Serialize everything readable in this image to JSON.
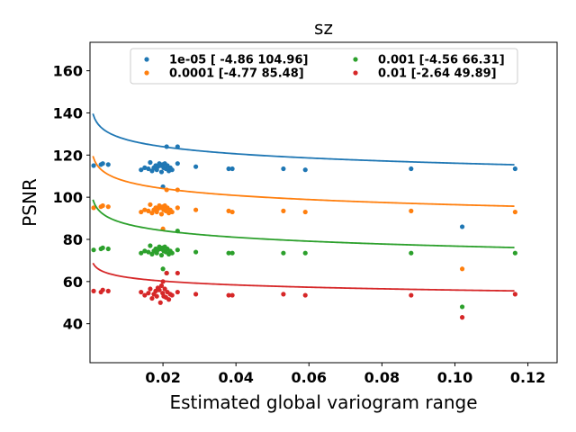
{
  "chart_data": {
    "type": "scatter",
    "title": "sz",
    "xlabel": "Estimated global variogram range",
    "ylabel": "PSNR",
    "xlim": [
      0.0,
      0.128
    ],
    "ylim": [
      21.5,
      173.5
    ],
    "xticks": [
      0.02,
      0.04,
      0.06,
      0.08,
      0.1,
      0.12
    ],
    "xtick_labels": [
      "0.02",
      "0.04",
      "0.06",
      "0.08",
      "0.10",
      "0.12"
    ],
    "yticks": [
      40,
      60,
      80,
      100,
      120,
      140,
      160
    ],
    "ytick_labels": [
      "40",
      "60",
      "80",
      "100",
      "120",
      "140",
      "160"
    ],
    "legend_position": "upper-center, two columns",
    "series": [
      {
        "name": "1e-05 [ -4.86 104.96]",
        "color": "#1f77b4",
        "fit": {
          "a": -4.86,
          "b": 104.96
        },
        "points": [
          [
            0.001,
            115
          ],
          [
            0.003,
            115.5
          ],
          [
            0.0035,
            116
          ],
          [
            0.005,
            115.5
          ],
          [
            0.014,
            113
          ],
          [
            0.015,
            114
          ],
          [
            0.016,
            113.5
          ],
          [
            0.0165,
            116.5
          ],
          [
            0.017,
            112.5
          ],
          [
            0.0175,
            114
          ],
          [
            0.018,
            115
          ],
          [
            0.0183,
            113
          ],
          [
            0.0186,
            114.5
          ],
          [
            0.019,
            116
          ],
          [
            0.0193,
            115
          ],
          [
            0.0196,
            112
          ],
          [
            0.0199,
            115.5
          ],
          [
            0.0202,
            114
          ],
          [
            0.0205,
            116
          ],
          [
            0.0208,
            113.5
          ],
          [
            0.0212,
            115
          ],
          [
            0.0216,
            112.5
          ],
          [
            0.022,
            114
          ],
          [
            0.0225,
            113
          ],
          [
            0.02,
            105
          ],
          [
            0.021,
            124
          ],
          [
            0.024,
            124
          ],
          [
            0.024,
            116
          ],
          [
            0.029,
            114.5
          ],
          [
            0.038,
            113.5
          ],
          [
            0.039,
            113.5
          ],
          [
            0.053,
            113.5
          ],
          [
            0.059,
            113
          ],
          [
            0.088,
            113.5
          ],
          [
            0.102,
            86
          ],
          [
            0.1165,
            113.5
          ]
        ]
      },
      {
        "name": "0.0001 [-4.77 85.48]",
        "color": "#ff7f0e",
        "fit": {
          "a": -4.77,
          "b": 85.48
        },
        "points": [
          [
            0.001,
            95
          ],
          [
            0.003,
            95.5
          ],
          [
            0.0035,
            96
          ],
          [
            0.005,
            95.5
          ],
          [
            0.014,
            93
          ],
          [
            0.015,
            94
          ],
          [
            0.016,
            93.5
          ],
          [
            0.0165,
            96.5
          ],
          [
            0.017,
            92.5
          ],
          [
            0.0175,
            94
          ],
          [
            0.018,
            95
          ],
          [
            0.0183,
            93
          ],
          [
            0.0186,
            94.5
          ],
          [
            0.019,
            96
          ],
          [
            0.0193,
            95
          ],
          [
            0.0196,
            92
          ],
          [
            0.0199,
            95.5
          ],
          [
            0.0202,
            94
          ],
          [
            0.0205,
            96
          ],
          [
            0.0208,
            93.5
          ],
          [
            0.0212,
            95
          ],
          [
            0.0216,
            92.5
          ],
          [
            0.022,
            94
          ],
          [
            0.0225,
            93
          ],
          [
            0.02,
            85
          ],
          [
            0.021,
            103.5
          ],
          [
            0.024,
            103.5
          ],
          [
            0.024,
            95
          ],
          [
            0.029,
            94
          ],
          [
            0.038,
            93.5
          ],
          [
            0.039,
            93
          ],
          [
            0.053,
            93.5
          ],
          [
            0.059,
            93
          ],
          [
            0.088,
            93.5
          ],
          [
            0.102,
            66
          ],
          [
            0.1165,
            93
          ]
        ]
      },
      {
        "name": "0.001 [-4.56 66.31]",
        "color": "#2ca02c",
        "fit": {
          "a": -4.56,
          "b": 66.31
        },
        "points": [
          [
            0.001,
            75
          ],
          [
            0.003,
            75.5
          ],
          [
            0.0035,
            76
          ],
          [
            0.005,
            75.5
          ],
          [
            0.014,
            73.5
          ],
          [
            0.015,
            74.5
          ],
          [
            0.016,
            74
          ],
          [
            0.0165,
            77
          ],
          [
            0.017,
            73
          ],
          [
            0.0175,
            74.5
          ],
          [
            0.018,
            75.5
          ],
          [
            0.0183,
            73.5
          ],
          [
            0.0186,
            75
          ],
          [
            0.019,
            76.5
          ],
          [
            0.0193,
            75.5
          ],
          [
            0.0196,
            72.5
          ],
          [
            0.0199,
            76
          ],
          [
            0.0202,
            74.5
          ],
          [
            0.0205,
            76.5
          ],
          [
            0.0208,
            74
          ],
          [
            0.0212,
            75.5
          ],
          [
            0.0216,
            73
          ],
          [
            0.022,
            74.5
          ],
          [
            0.0225,
            73.5
          ],
          [
            0.02,
            66
          ],
          [
            0.021,
            64
          ],
          [
            0.024,
            84
          ],
          [
            0.024,
            75
          ],
          [
            0.029,
            74
          ],
          [
            0.038,
            73.5
          ],
          [
            0.039,
            73.5
          ],
          [
            0.053,
            73.5
          ],
          [
            0.059,
            73.5
          ],
          [
            0.088,
            73.5
          ],
          [
            0.102,
            48
          ],
          [
            0.1165,
            73.5
          ]
        ]
      },
      {
        "name": "0.01 [-2.64 49.89]",
        "color": "#d62728",
        "fit": {
          "a": -2.64,
          "b": 49.89
        },
        "points": [
          [
            0.001,
            55.5
          ],
          [
            0.003,
            55
          ],
          [
            0.0035,
            56
          ],
          [
            0.005,
            55.5
          ],
          [
            0.014,
            55
          ],
          [
            0.015,
            53.5
          ],
          [
            0.016,
            54.5
          ],
          [
            0.0165,
            56.5
          ],
          [
            0.017,
            52
          ],
          [
            0.0175,
            54
          ],
          [
            0.018,
            55.5
          ],
          [
            0.0183,
            53
          ],
          [
            0.0186,
            57
          ],
          [
            0.019,
            56
          ],
          [
            0.0193,
            50
          ],
          [
            0.0196,
            58
          ],
          [
            0.0199,
            54.5
          ],
          [
            0.0202,
            53
          ],
          [
            0.0205,
            56.5
          ],
          [
            0.0208,
            52.5
          ],
          [
            0.0212,
            55
          ],
          [
            0.0216,
            51.5
          ],
          [
            0.022,
            54
          ],
          [
            0.0225,
            53.5
          ],
          [
            0.02,
            60
          ],
          [
            0.021,
            64
          ],
          [
            0.024,
            64
          ],
          [
            0.024,
            55
          ],
          [
            0.029,
            54
          ],
          [
            0.038,
            53.5
          ],
          [
            0.039,
            53.5
          ],
          [
            0.053,
            54
          ],
          [
            0.059,
            53.5
          ],
          [
            0.088,
            53.5
          ],
          [
            0.102,
            43
          ],
          [
            0.1165,
            54
          ]
        ]
      }
    ]
  }
}
